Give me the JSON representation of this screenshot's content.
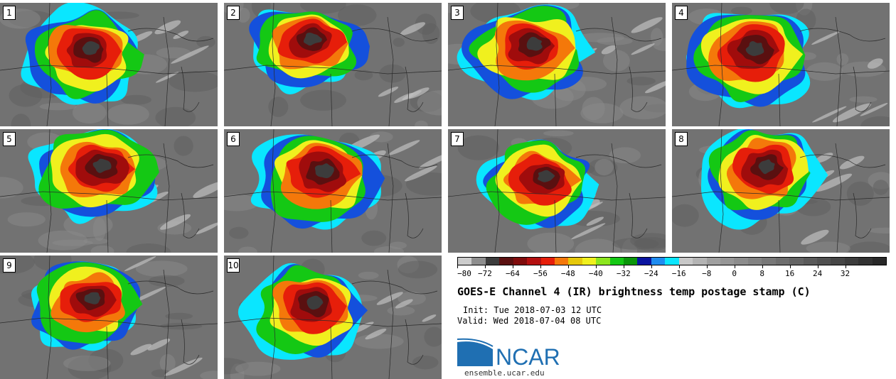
{
  "panels": [
    {
      "number": "1"
    },
    {
      "number": "2"
    },
    {
      "number": "3"
    },
    {
      "number": "4"
    },
    {
      "number": "5"
    },
    {
      "number": "6"
    },
    {
      "number": "7"
    },
    {
      "number": "8"
    },
    {
      "number": "9"
    },
    {
      "number": "10"
    }
  ],
  "colorbar": {
    "colors": [
      "#cccccc",
      "#8e8e8e",
      "#3c3c3c",
      "#5a1010",
      "#800c0c",
      "#b41010",
      "#e61e0a",
      "#f4780a",
      "#e6c80a",
      "#f0f01e",
      "#8ce61e",
      "#14c814",
      "#0a960a",
      "#0a14a0",
      "#1e8cf0",
      "#0ae6ff",
      "#c8c8c8",
      "#b4b4b4",
      "#a0a0a0",
      "#969696",
      "#8c8c8c",
      "#828282",
      "#787878",
      "#6e6e6e",
      "#646464",
      "#5a5a5a",
      "#505050",
      "#464646",
      "#3c3c3c",
      "#323232",
      "#282828"
    ],
    "tick_labels": [
      "−80",
      "−72",
      "−64",
      "−56",
      "−48",
      "−40",
      "−32",
      "−24",
      "−16",
      "−8",
      "0",
      "8",
      "16",
      "24",
      "32"
    ]
  },
  "title": "GOES-E Channel 4 (IR) brightness temp postage stamp (C)",
  "init_label": "Init:",
  "init_value": "Tue 2018-07-03 12 UTC",
  "valid_label": "Valid:",
  "valid_value": "Wed 2018-07-04 08 UTC",
  "logo_text": "NCAR",
  "site": "ensemble.ucar.edu"
}
